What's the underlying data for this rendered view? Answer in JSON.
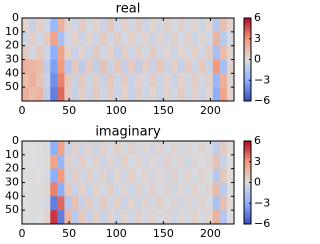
{
  "chart_data": [
    {
      "type": "heatmap",
      "title": "real",
      "colormap": "coolwarm",
      "clim": [
        -6,
        6
      ],
      "cticks": [
        {
          "value": 6,
          "label": "6"
        },
        {
          "value": 3,
          "label": "3"
        },
        {
          "value": 0,
          "label": "0"
        },
        {
          "value": -3,
          "label": "−3"
        },
        {
          "value": -6,
          "label": "−6"
        }
      ],
      "xlim": [
        0,
        225
      ],
      "xticks": [
        0,
        50,
        100,
        150,
        200
      ],
      "ylim": [
        60,
        0
      ],
      "yticks": [
        0,
        10,
        20,
        30,
        40,
        50
      ],
      "z": [
        [
          0.5,
          -0.8,
          0.6,
          -0.5,
          -2.5,
          2,
          0.4,
          -0.6,
          0.8,
          -0.4,
          0.5,
          -0.7,
          1,
          -0.5,
          0.6,
          -0.4,
          0.7,
          -0.6,
          0.4,
          -0.5,
          0.6,
          -0.3,
          0.5,
          -0.4,
          0.3,
          -0.6,
          0.5,
          -1.5,
          1.2,
          0.3
        ],
        [
          -0.6,
          0.7,
          -0.4,
          0.8,
          2.5,
          -2,
          -0.5,
          0.6,
          -0.7,
          0.5,
          -0.6,
          0.8,
          -0.5,
          0.7,
          -0.5,
          0.6,
          -0.4,
          0.5,
          -0.6,
          0.4,
          -0.5,
          0.6,
          -0.4,
          0.5,
          -0.6,
          0.4,
          -0.5,
          1.8,
          -1.3,
          -0.3
        ],
        [
          0.8,
          -0.5,
          0.9,
          -0.6,
          -3,
          2.5,
          0.6,
          -0.8,
          0.5,
          -0.7,
          0.8,
          -0.5,
          0.6,
          -0.9,
          0.7,
          -0.5,
          0.6,
          -0.4,
          0.8,
          -0.5,
          0.4,
          -0.6,
          0.5,
          -0.4,
          0.6,
          -0.5,
          0.7,
          -2,
          1.5,
          0.4
        ],
        [
          2,
          1.8,
          1.5,
          -1,
          -3.5,
          3,
          -1.5,
          1,
          -1.2,
          0.8,
          -1,
          1.2,
          -0.8,
          1,
          -0.9,
          0.8,
          -1,
          0.7,
          -0.8,
          1,
          -0.7,
          0.6,
          -0.9,
          0.8,
          -0.6,
          1,
          -0.8,
          3,
          -2,
          0.5
        ],
        [
          1.5,
          2,
          1.2,
          -0.8,
          -4,
          3.5,
          1,
          -0.7,
          0.9,
          -0.6,
          0.7,
          -0.8,
          1,
          -0.6,
          0.8,
          -0.7,
          0.6,
          -0.5,
          0.8,
          -0.6,
          0.5,
          -0.7,
          0.6,
          -0.5,
          0.7,
          -0.4,
          0.6,
          -2.5,
          2,
          0.3
        ],
        [
          2,
          1.5,
          1.8,
          -1,
          -4.5,
          4,
          0.8,
          -0.9,
          0.7,
          -0.8,
          0.9,
          -0.6,
          0.8,
          -0.7,
          0.6,
          -0.8,
          0.7,
          -0.6,
          0.5,
          -0.7,
          0.6,
          -0.5,
          0.8,
          -0.6,
          0.5,
          -0.7,
          0.4,
          -3,
          2.5,
          0.4
        ]
      ]
    },
    {
      "type": "heatmap",
      "title": "imaginary",
      "colormap": "coolwarm",
      "clim": [
        -6,
        6
      ],
      "cticks": [
        {
          "value": 6,
          "label": "6"
        },
        {
          "value": 3,
          "label": "3"
        },
        {
          "value": 0,
          "label": "0"
        },
        {
          "value": -3,
          "label": "−3"
        },
        {
          "value": -6,
          "label": "−6"
        }
      ],
      "xlim": [
        0,
        225
      ],
      "xticks": [
        0,
        50,
        100,
        150,
        200
      ],
      "ylim": [
        60,
        0
      ],
      "yticks": [
        0,
        10,
        20,
        30,
        40,
        50
      ],
      "z": [
        [
          0,
          0,
          0.1,
          -0.2,
          -3,
          2.5,
          -0.8,
          0.6,
          -0.5,
          0.4,
          -0.6,
          0.5,
          -0.4,
          0.6,
          -0.3,
          0.5,
          -0.4,
          0.3,
          -0.5,
          0.4,
          -0.3,
          0.5,
          -0.4,
          0.3,
          -0.2,
          0.4,
          -0.3,
          -1,
          0.8,
          0.1
        ],
        [
          0,
          0,
          -0.1,
          0.2,
          2.5,
          -2.5,
          0.6,
          -0.5,
          0.7,
          -0.4,
          0.5,
          -0.6,
          0.4,
          -0.5,
          0.6,
          -0.3,
          0.4,
          -0.5,
          0.3,
          -0.4,
          0.5,
          -0.3,
          0.4,
          -0.5,
          0.3,
          -0.2,
          0.4,
          1.2,
          -0.7,
          0
        ],
        [
          0,
          0.1,
          0,
          -0.3,
          -3,
          3,
          -0.7,
          0.8,
          -0.5,
          0.6,
          -0.4,
          0.5,
          -0.6,
          0.4,
          -0.5,
          0.6,
          -0.3,
          0.4,
          -0.5,
          0.3,
          -0.4,
          0.5,
          -0.3,
          0.4,
          -0.3,
          0.5,
          -0.2,
          -1.4,
          1,
          0.1
        ],
        [
          0,
          -0.1,
          0.1,
          0.3,
          3.5,
          -3,
          1,
          -0.8,
          0.6,
          -0.7,
          0.5,
          -0.4,
          0.7,
          -0.5,
          0.4,
          -0.6,
          0.5,
          -0.4,
          0.6,
          -0.3,
          0.4,
          -0.5,
          0.3,
          -0.4,
          0.5,
          -0.3,
          0.4,
          1.5,
          -1.2,
          0
        ],
        [
          0,
          0.1,
          -0.1,
          -0.4,
          -4.5,
          4,
          -1.5,
          1.2,
          -0.8,
          0.7,
          -0.6,
          0.8,
          -0.5,
          0.6,
          -0.7,
          0.4,
          -0.6,
          0.5,
          -0.4,
          0.6,
          -0.3,
          0.4,
          -0.5,
          0.3,
          -0.4,
          0.5,
          -0.3,
          -1.8,
          1.3,
          0.1
        ],
        [
          0,
          -0.1,
          0,
          0.4,
          5,
          -4.5,
          1.8,
          -1.3,
          1,
          -0.8,
          0.6,
          -0.7,
          0.5,
          -0.6,
          0.4,
          -0.5,
          0.6,
          -0.4,
          0.5,
          -0.3,
          0.4,
          -0.6,
          0.3,
          -0.4,
          0.5,
          -0.3,
          0.4,
          2,
          -1.5,
          0
        ]
      ]
    }
  ]
}
